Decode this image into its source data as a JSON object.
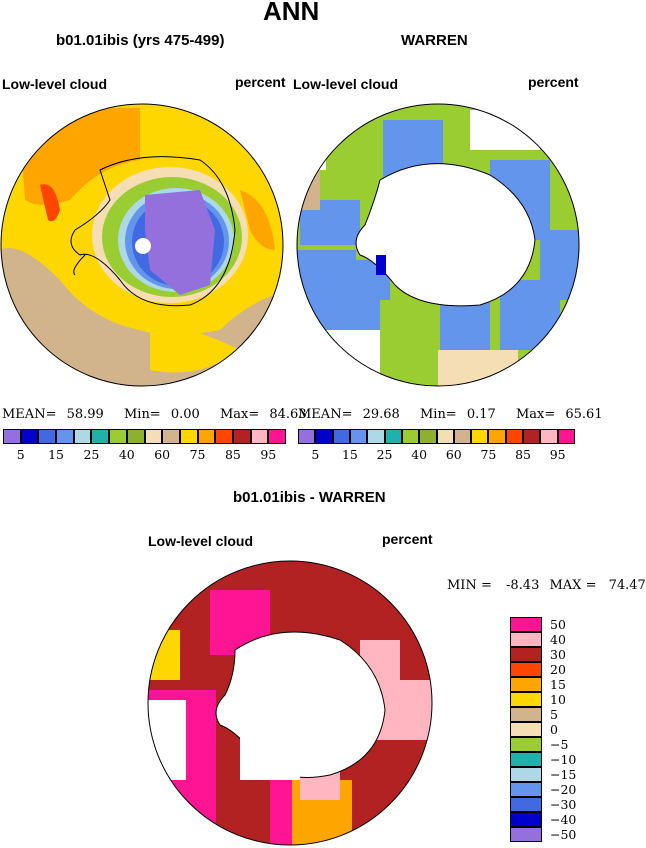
{
  "page_title": "ANN",
  "panel_top_left": {
    "case_title": "b01.01ibis (yrs 475-499)",
    "variable": "Low-level cloud",
    "units": "percent",
    "stats": {
      "mean_label": "MEAN=",
      "mean": "58.99",
      "min_label": "Min=",
      "min": "0.00",
      "max_label": "Max=",
      "max": "84.63"
    }
  },
  "panel_top_right": {
    "case_title": "WARREN",
    "variable": "Low-level cloud",
    "units": "percent",
    "stats": {
      "mean_label": "MEAN=",
      "mean": "29.68",
      "min_label": "Min=",
      "min": "0.17",
      "max_label": "Max=",
      "max": "65.61"
    }
  },
  "panel_bottom": {
    "case_title": "b01.01ibis - WARREN",
    "variable": "Low-level cloud",
    "units": "percent",
    "stats": {
      "min_label": "MIN =",
      "min": "-8.43",
      "max_label": "MAX =",
      "max": "74.47"
    }
  },
  "colorbar_top": {
    "labels": [
      "5",
      "15",
      "25",
      "40",
      "60",
      "75",
      "85",
      "95"
    ],
    "colors": [
      "#9370db",
      "#0000cd",
      "#4169e1",
      "#6495ed",
      "#add8e6",
      "#20b2aa",
      "#9acd32",
      "#8db030",
      "#f5deb3",
      "#d2b48c",
      "#ffd700",
      "#ffa500",
      "#ff4500",
      "#b22222",
      "#ffb6c1",
      "#ff1493"
    ]
  },
  "colorbar_bottom": {
    "labels": [
      "50",
      "40",
      "30",
      "20",
      "15",
      "10",
      "5",
      "0",
      "−5",
      "−10",
      "−15",
      "−20",
      "−30",
      "−40",
      "−50"
    ],
    "colors": [
      "#ff1493",
      "#ffb6c1",
      "#b22222",
      "#ff4500",
      "#ffa500",
      "#ffd700",
      "#d2b48c",
      "#f5deb3",
      "#9acd32",
      "#20b2aa",
      "#add8e6",
      "#6495ed",
      "#4169e1",
      "#0000cd",
      "#9370db"
    ]
  }
}
